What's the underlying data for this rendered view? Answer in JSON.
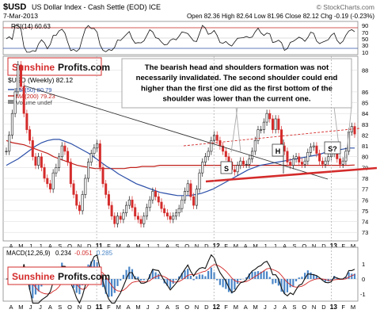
{
  "header": {
    "symbol": "$USD",
    "desc": "US Dollar Index - Cash Settle (EOD) ICE",
    "date": "7-Mar-2013",
    "quote": "Open 82.36   High 82.64   Low 81.96   Close 82.12   Chg -0.19 (-0.23%)",
    "watermark": "© StockCharts.com"
  },
  "rsi": {
    "label": "RSI(14) 60.63",
    "ticks": [
      "90",
      "70",
      "50",
      "30",
      "10"
    ]
  },
  "legend": {
    "title": "$USD (Weekly) 82.12",
    "ma50": "MA(50) 80.79",
    "ma200": "MA(200) 79.23",
    "volume": "Volume undef"
  },
  "brand": {
    "left": "Sunshine",
    "right": "Profits.com"
  },
  "annotation": "The bearish head and shoulders formation was not necessarily invalidated. The second shoulder could end higher than the first one did as the first bottom of the shoulder was lower than the current one.",
  "pattern_labels": {
    "s1": "S",
    "h": "H",
    "s2": "S?"
  },
  "macd": {
    "label_prefix": "MACD(12,26,9)",
    "v1": "0.234",
    "v2": "-0.051",
    "v3": "0.285"
  },
  "chart_data": {
    "type": "line",
    "series_name": "$USD (Weekly)",
    "x_labels": [
      "A",
      "M",
      "J",
      "J",
      "A",
      "S",
      "O",
      "N",
      "D",
      "11",
      "F",
      "M",
      "A",
      "M",
      "J",
      "J",
      "A",
      "S",
      "O",
      "N",
      "D",
      "12",
      "F",
      "M",
      "A",
      "M",
      "J",
      "J",
      "A",
      "S",
      "O",
      "N",
      "D",
      "13",
      "F",
      "M"
    ],
    "y_ticks": [
      73,
      74,
      75,
      76,
      77,
      78,
      79,
      80,
      81,
      82,
      83,
      84,
      85,
      86,
      88
    ],
    "ylim": [
      72.5,
      89
    ],
    "price": [
      80.5,
      82,
      84,
      86,
      88.5,
      86.5,
      84,
      82.5,
      81.5,
      80,
      79.2,
      80,
      79,
      78,
      77.5,
      77,
      78.5,
      79,
      80,
      81,
      80.5,
      79.5,
      77.5,
      76.5,
      75.5,
      75,
      76.5,
      78,
      79.5,
      80.3,
      80.8,
      81.2,
      79,
      77.5,
      76.5,
      75.5,
      74.5,
      73.8,
      74.5,
      74.2,
      74.8,
      75.5,
      76,
      75.3,
      74.5,
      74.2,
      73.8,
      74.5,
      75.3,
      76,
      76.8,
      76.3,
      75.8,
      75.2,
      74.8,
      74.5,
      74.2,
      74.5,
      74.8,
      75.2,
      76,
      76.8,
      77.5,
      76.3,
      75.5,
      77,
      78.5,
      79.5,
      80,
      80.5,
      81.5,
      82,
      81.5,
      81,
      80.5,
      80,
      79.5,
      78.8,
      78.6,
      79.2,
      79.6,
      79.3,
      79.3,
      79.8,
      80.5,
      81.5,
      82.5,
      82.5,
      83.2,
      84,
      83.5,
      82.5,
      83.5,
      82.5,
      81,
      80.5,
      79.5,
      79.2,
      79.8,
      80,
      79.5,
      79.3,
      79.6,
      80.4,
      80.9,
      81,
      80.3,
      79.6,
      79.3,
      79.6,
      80,
      80.3,
      80.8,
      79.8,
      79.3,
      79.6,
      80.5,
      82.3,
      82.8,
      82.1
    ],
    "ma50": [
      79.2,
      79.5,
      79.8,
      80.2,
      80.6,
      81,
      81.3,
      81.5,
      81.6,
      81.6,
      81.4,
      81.2,
      80.9,
      80.6,
      80.3,
      79.9,
      79.5,
      79.1,
      78.8,
      78.4,
      78.1,
      77.8,
      77.5,
      77.3,
      77.1,
      76.9,
      76.7,
      76.6,
      76.5,
      76.4,
      76.4,
      76.4,
      76.5,
      76.6,
      76.8,
      77,
      77.3,
      77.6,
      77.9,
      78.2,
      78.5,
      78.8,
      79,
      79.2,
      79.3,
      79.4,
      79.5,
      79.6,
      79.7,
      79.8,
      79.9,
      80,
      80.1,
      80.2,
      80.4,
      80.5,
      80.6,
      80.7,
      80.8,
      80.8
    ],
    "ma200": [
      81.5,
      81.3,
      81.2,
      81.1,
      80.9,
      80.7,
      80.5,
      80.3,
      80,
      79.8,
      79.6,
      79.4,
      79.2,
      79.1,
      79,
      78.9,
      78.9,
      78.9,
      78.9,
      78.9,
      78.9,
      79,
      79,
      79.1,
      79.1,
      79.1,
      79.2,
      79.2,
      79.2,
      79.2,
      79.2,
      79.2,
      79.2,
      79.2,
      79.2,
      79.2,
      79.2,
      79.2,
      79.2,
      79.2,
      79.2,
      79.2,
      79.2,
      79.2,
      79.2,
      79.2,
      79.2,
      79.2,
      79.2,
      79.2,
      79.2,
      79.2,
      79.2,
      79.2,
      79.2,
      79.2,
      79.2,
      79.2,
      79.2,
      79.23
    ]
  },
  "colors": {
    "price": "#111111",
    "up": "#1a1a1a",
    "down": "#d42b2b",
    "ma50": "#2b4fa8",
    "ma200": "#c0201b",
    "annotation_border": "#a8a8a8",
    "brand_red": "#d42b2b",
    "macd_bar": "#4a86c8",
    "grid": "#d8d8d8"
  }
}
